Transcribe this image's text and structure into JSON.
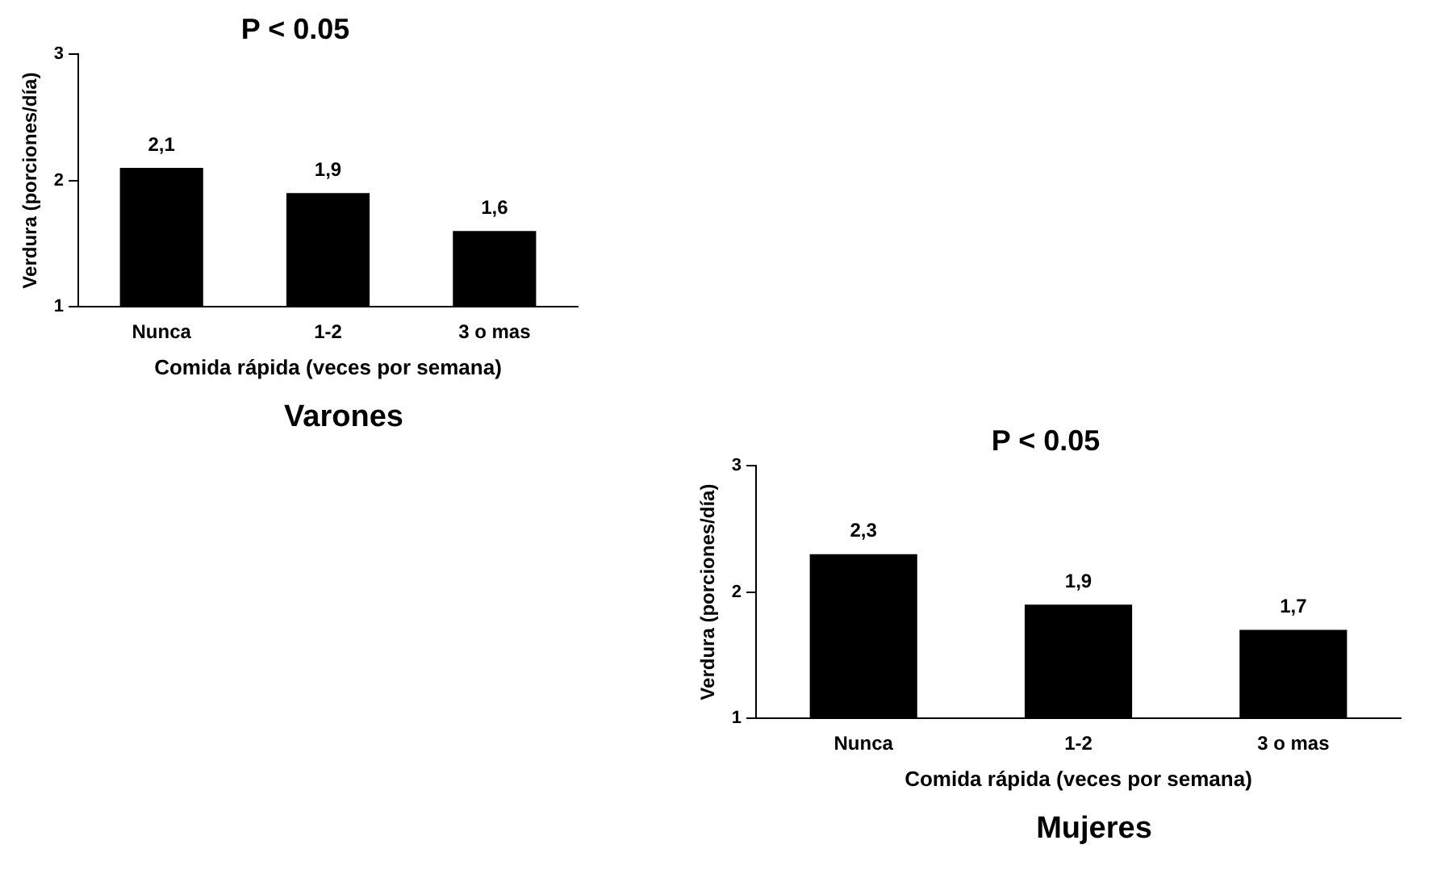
{
  "chart_data": [
    {
      "type": "bar",
      "title": "P < 0.05",
      "xlabel": "Comida rápida (veces por semana)",
      "ylabel": "Verdura (porciones/día)",
      "categories": [
        "Nunca",
        "1-2",
        "3 o mas"
      ],
      "values": [
        2.1,
        1.9,
        1.6
      ],
      "value_labels": [
        "2,1",
        "1,9",
        "1,6"
      ],
      "color": "#000000",
      "ylim": [
        1,
        3
      ],
      "yticks": [
        1,
        2,
        3
      ],
      "grid": false,
      "legend": false,
      "annotations": [
        "Varones"
      ]
    },
    {
      "type": "bar",
      "title": "P < 0.05",
      "xlabel": "Comida rápida (veces por semana)",
      "ylabel": "Verdura (porciones/día)",
      "categories": [
        "Nunca",
        "1-2",
        "3 o mas"
      ],
      "values": [
        2.3,
        1.9,
        1.7
      ],
      "value_labels": [
        "2,3",
        "1,9",
        "1,7"
      ],
      "color": "#000000",
      "ylim": [
        1,
        3
      ],
      "yticks": [
        1,
        2,
        3
      ],
      "grid": false,
      "legend": false,
      "annotations": [
        "Mujeres"
      ]
    }
  ]
}
